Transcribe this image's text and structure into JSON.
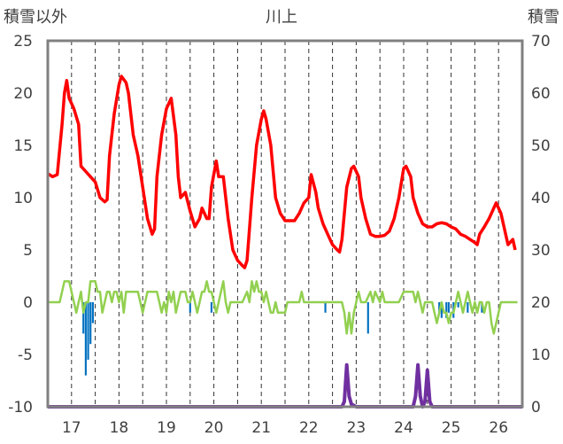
{
  "chart_data": {
    "type": "line",
    "title": "川上",
    "left_axis_label": "積雪以外",
    "right_axis_label": "積雪",
    "left_ylim": [
      -10,
      25
    ],
    "left_ticks": [
      "25",
      "20",
      "15",
      "10",
      "5",
      "0",
      "-5",
      "-10"
    ],
    "right_ylim": [
      0,
      70
    ],
    "right_ticks": [
      "70",
      "60",
      "50",
      "40",
      "30",
      "20",
      "10",
      "0"
    ],
    "xlim": [
      16.5,
      26.5
    ],
    "x_ticks": [
      "17",
      "18",
      "19",
      "20",
      "21",
      "22",
      "23",
      "24",
      "25",
      "26"
    ],
    "grid": "dashed vertical at each day and half-day",
    "colors": {
      "temperature": "#ff0000",
      "wind_like": "#92d050",
      "precip_bars": "#0070c0",
      "snow": "#7030a0",
      "frame": "#808080"
    },
    "series": [
      {
        "axis": "left",
        "color": "#ff0000",
        "points": [
          [
            16.5,
            12.3
          ],
          [
            16.6,
            12
          ],
          [
            16.7,
            12.2
          ],
          [
            16.8,
            17
          ],
          [
            16.85,
            20
          ],
          [
            16.9,
            21.2
          ],
          [
            16.95,
            19.5
          ],
          [
            17.05,
            18.5
          ],
          [
            17.15,
            17
          ],
          [
            17.2,
            13
          ],
          [
            17.3,
            12.5
          ],
          [
            17.4,
            12
          ],
          [
            17.5,
            11.5
          ],
          [
            17.6,
            10
          ],
          [
            17.7,
            9.6
          ],
          [
            17.75,
            9.8
          ],
          [
            17.8,
            14
          ],
          [
            17.9,
            18
          ],
          [
            18.0,
            20.8
          ],
          [
            18.05,
            21.6
          ],
          [
            18.15,
            21
          ],
          [
            18.2,
            20
          ],
          [
            18.3,
            16
          ],
          [
            18.4,
            14
          ],
          [
            18.5,
            11
          ],
          [
            18.6,
            8
          ],
          [
            18.7,
            6.5
          ],
          [
            18.75,
            7
          ],
          [
            18.8,
            12
          ],
          [
            18.9,
            16
          ],
          [
            19.0,
            18.5
          ],
          [
            19.1,
            19.5
          ],
          [
            19.2,
            16
          ],
          [
            19.25,
            12
          ],
          [
            19.3,
            10
          ],
          [
            19.4,
            10.5
          ],
          [
            19.5,
            8.7
          ],
          [
            19.6,
            7.2
          ],
          [
            19.7,
            8
          ],
          [
            19.75,
            9
          ],
          [
            19.85,
            8
          ],
          [
            19.9,
            8
          ],
          [
            19.95,
            11
          ],
          [
            20.05,
            13.5
          ],
          [
            20.1,
            12
          ],
          [
            20.2,
            12
          ],
          [
            20.3,
            8
          ],
          [
            20.4,
            5
          ],
          [
            20.5,
            4
          ],
          [
            20.6,
            3.5
          ],
          [
            20.65,
            3.3
          ],
          [
            20.7,
            4
          ],
          [
            20.8,
            10
          ],
          [
            20.9,
            15
          ],
          [
            21.0,
            17.5
          ],
          [
            21.05,
            18.3
          ],
          [
            21.1,
            17.5
          ],
          [
            21.2,
            15
          ],
          [
            21.3,
            10
          ],
          [
            21.4,
            8.5
          ],
          [
            21.5,
            7.8
          ],
          [
            21.6,
            7.8
          ],
          [
            21.7,
            7.8
          ],
          [
            21.8,
            8.5
          ],
          [
            21.9,
            9.5
          ],
          [
            22.0,
            10
          ],
          [
            22.05,
            12.2
          ],
          [
            22.15,
            10.5
          ],
          [
            22.2,
            9
          ],
          [
            22.3,
            7.5
          ],
          [
            22.4,
            6.5
          ],
          [
            22.5,
            5.5
          ],
          [
            22.6,
            5
          ],
          [
            22.65,
            4.8
          ],
          [
            22.7,
            6
          ],
          [
            22.8,
            11
          ],
          [
            22.9,
            12.8
          ],
          [
            22.95,
            13
          ],
          [
            23.05,
            12
          ],
          [
            23.1,
            10
          ],
          [
            23.2,
            8
          ],
          [
            23.3,
            6.5
          ],
          [
            23.4,
            6.3
          ],
          [
            23.5,
            6.3
          ],
          [
            23.6,
            6.4
          ],
          [
            23.7,
            6.8
          ],
          [
            23.8,
            8
          ],
          [
            23.9,
            10
          ],
          [
            24.0,
            12.8
          ],
          [
            24.05,
            13
          ],
          [
            24.15,
            12
          ],
          [
            24.2,
            10
          ],
          [
            24.3,
            8.5
          ],
          [
            24.4,
            7.5
          ],
          [
            24.5,
            7.2
          ],
          [
            24.6,
            7.2
          ],
          [
            24.7,
            7.5
          ],
          [
            24.8,
            7.6
          ],
          [
            24.9,
            7.5
          ],
          [
            25.0,
            7.2
          ],
          [
            25.1,
            7
          ],
          [
            25.2,
            6.5
          ],
          [
            25.3,
            6.3
          ],
          [
            25.4,
            6
          ],
          [
            25.5,
            5.7
          ],
          [
            25.55,
            5.5
          ],
          [
            25.6,
            6.5
          ],
          [
            25.7,
            7.2
          ],
          [
            25.8,
            8
          ],
          [
            25.85,
            8.5
          ],
          [
            25.95,
            9.5
          ],
          [
            26.05,
            8.5
          ],
          [
            26.15,
            6.5
          ],
          [
            26.2,
            5.5
          ],
          [
            26.3,
            6
          ],
          [
            26.35,
            5
          ]
        ]
      },
      {
        "axis": "left",
        "color": "#92d050",
        "points": [
          [
            16.5,
            0
          ],
          [
            16.75,
            0
          ],
          [
            16.8,
            1
          ],
          [
            16.85,
            2
          ],
          [
            16.95,
            2
          ],
          [
            17.0,
            1
          ],
          [
            17.05,
            0
          ],
          [
            17.1,
            -1
          ],
          [
            17.15,
            0
          ],
          [
            17.2,
            1
          ],
          [
            17.25,
            -1
          ],
          [
            17.3,
            0
          ],
          [
            17.35,
            0
          ],
          [
            17.4,
            2
          ],
          [
            17.5,
            2
          ],
          [
            17.55,
            1
          ],
          [
            17.6,
            1
          ],
          [
            17.65,
            -1
          ],
          [
            17.7,
            0
          ],
          [
            17.75,
            1
          ],
          [
            17.8,
            1
          ],
          [
            17.85,
            0
          ],
          [
            17.9,
            1
          ],
          [
            17.95,
            1
          ],
          [
            18.0,
            0
          ],
          [
            18.05,
            1
          ],
          [
            18.1,
            -1
          ],
          [
            18.15,
            1
          ],
          [
            18.2,
            1
          ],
          [
            18.3,
            1
          ],
          [
            18.4,
            1
          ],
          [
            18.45,
            0
          ],
          [
            18.5,
            -1
          ],
          [
            18.55,
            0
          ],
          [
            18.6,
            1
          ],
          [
            18.7,
            1
          ],
          [
            18.8,
            1
          ],
          [
            18.85,
            0
          ],
          [
            18.9,
            -1
          ],
          [
            18.95,
            0
          ],
          [
            19.0,
            -1
          ],
          [
            19.05,
            1
          ],
          [
            19.1,
            0
          ],
          [
            19.15,
            1
          ],
          [
            19.2,
            -1
          ],
          [
            19.25,
            0
          ],
          [
            19.3,
            1
          ],
          [
            19.4,
            1
          ],
          [
            19.45,
            0
          ],
          [
            19.5,
            0
          ],
          [
            19.55,
            1
          ],
          [
            19.6,
            0
          ],
          [
            19.65,
            -1
          ],
          [
            19.7,
            0
          ],
          [
            19.75,
            1
          ],
          [
            19.8,
            1
          ],
          [
            19.85,
            2
          ],
          [
            19.9,
            1
          ],
          [
            19.95,
            1
          ],
          [
            20.0,
            0
          ],
          [
            20.05,
            -1
          ],
          [
            20.1,
            0
          ],
          [
            20.15,
            1
          ],
          [
            20.2,
            2
          ],
          [
            20.25,
            0
          ],
          [
            20.3,
            -1
          ],
          [
            20.35,
            0
          ],
          [
            20.6,
            0
          ],
          [
            20.7,
            1
          ],
          [
            20.75,
            0
          ],
          [
            20.8,
            2
          ],
          [
            20.85,
            1
          ],
          [
            20.9,
            2
          ],
          [
            20.95,
            1
          ],
          [
            21.0,
            1
          ],
          [
            21.05,
            0
          ],
          [
            21.1,
            1
          ],
          [
            21.15,
            0
          ],
          [
            21.2,
            -1
          ],
          [
            21.25,
            -1
          ],
          [
            21.3,
            0
          ],
          [
            21.35,
            -1
          ],
          [
            21.4,
            -1
          ],
          [
            21.5,
            -1
          ],
          [
            21.55,
            0
          ],
          [
            21.6,
            0
          ],
          [
            21.8,
            0
          ],
          [
            21.85,
            1
          ],
          [
            21.9,
            0
          ],
          [
            22.7,
            0
          ],
          [
            22.75,
            -1
          ],
          [
            22.8,
            -3
          ],
          [
            22.85,
            -1
          ],
          [
            22.9,
            -3
          ],
          [
            22.95,
            -1
          ],
          [
            23.0,
            0
          ],
          [
            23.05,
            1
          ],
          [
            23.1,
            0
          ],
          [
            23.2,
            0
          ],
          [
            23.3,
            1
          ],
          [
            23.35,
            0
          ],
          [
            23.4,
            1
          ],
          [
            23.5,
            0
          ],
          [
            23.55,
            1
          ],
          [
            23.6,
            0
          ],
          [
            23.9,
            0
          ],
          [
            24.0,
            1
          ],
          [
            24.1,
            1
          ],
          [
            24.2,
            1
          ],
          [
            24.25,
            0
          ],
          [
            24.3,
            1
          ],
          [
            24.35,
            0
          ],
          [
            24.4,
            -1
          ],
          [
            24.45,
            0
          ],
          [
            24.6,
            0
          ],
          [
            24.65,
            -1
          ],
          [
            24.7,
            -2
          ],
          [
            24.75,
            -1
          ],
          [
            24.8,
            0
          ],
          [
            24.85,
            -1
          ],
          [
            24.9,
            -1
          ],
          [
            24.95,
            -2
          ],
          [
            25.0,
            -1
          ],
          [
            25.05,
            -1
          ],
          [
            25.1,
            0
          ],
          [
            25.15,
            1
          ],
          [
            25.2,
            0
          ],
          [
            25.25,
            -1
          ],
          [
            25.3,
            0
          ],
          [
            25.35,
            1
          ],
          [
            25.4,
            0
          ],
          [
            25.45,
            -1
          ],
          [
            25.5,
            0
          ],
          [
            25.55,
            -1
          ],
          [
            25.6,
            0
          ],
          [
            25.65,
            0
          ],
          [
            25.7,
            -1
          ],
          [
            25.75,
            0
          ],
          [
            25.8,
            0
          ],
          [
            25.85,
            -2
          ],
          [
            25.9,
            -3
          ],
          [
            25.95,
            -2
          ],
          [
            26.0,
            -1
          ],
          [
            26.05,
            0
          ],
          [
            26.4,
            0
          ]
        ]
      },
      {
        "axis": "right",
        "color": "#7030a0",
        "points": [
          [
            16.5,
            0
          ],
          [
            22.7,
            0
          ],
          [
            22.75,
            1
          ],
          [
            22.8,
            8
          ],
          [
            22.85,
            2
          ],
          [
            22.9,
            0.5
          ],
          [
            23.0,
            0
          ],
          [
            24.2,
            0
          ],
          [
            24.25,
            2
          ],
          [
            24.3,
            8
          ],
          [
            24.35,
            2
          ],
          [
            24.4,
            0
          ],
          [
            24.45,
            1
          ],
          [
            24.5,
            7
          ],
          [
            24.55,
            1
          ],
          [
            24.6,
            0
          ],
          [
            26.5,
            0
          ]
        ]
      }
    ],
    "bars": {
      "axis": "left",
      "color": "#0070c0",
      "points": [
        [
          17.25,
          -3
        ],
        [
          17.3,
          -7
        ],
        [
          17.35,
          -5.5
        ],
        [
          17.4,
          -4
        ],
        [
          17.45,
          -2
        ],
        [
          19.5,
          -1
        ],
        [
          19.95,
          -1
        ],
        [
          22.35,
          -1
        ],
        [
          23.25,
          -3
        ],
        [
          24.75,
          -1
        ],
        [
          24.8,
          -1.5
        ],
        [
          24.9,
          -1.5
        ],
        [
          24.95,
          -1
        ],
        [
          25.05,
          -1.5
        ],
        [
          25.15,
          -0.5
        ],
        [
          25.35,
          -1
        ],
        [
          25.65,
          -1
        ]
      ]
    }
  }
}
